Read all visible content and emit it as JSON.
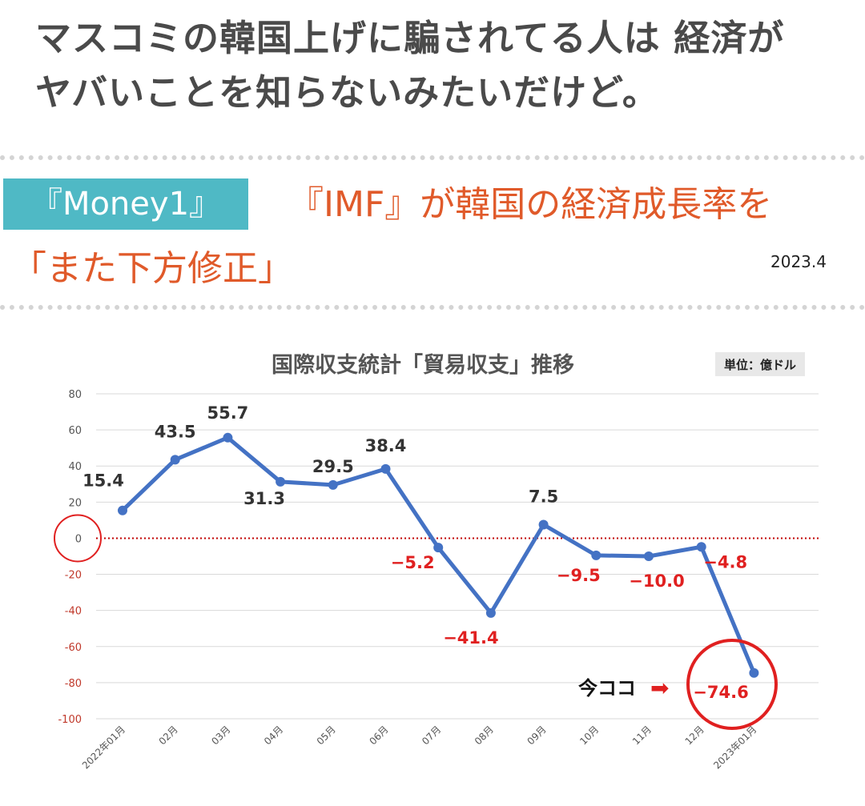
{
  "headline": {
    "line1": "マスコミの韓国上げに騙されてる人は 経済が",
    "line2": "ヤバいことを知らないみたいだけど。"
  },
  "article": {
    "badge": "『Money1』",
    "title_line1": "『IMF』が韓国の経済成長率を",
    "title_line2": "「また下方修正」",
    "date": "2023.4"
  },
  "colors": {
    "line": "#4472c4",
    "negative_label": "#e02020",
    "positive_label": "#333333",
    "zero_line": "#c00000",
    "highlight_circle": "#e02020",
    "badge": "#4fb9c5",
    "red_title": "#e05a2a"
  },
  "chart_data": {
    "type": "line",
    "title": "国際収支統計「貿易収支」推移",
    "unit": "単位：億ドル",
    "categories": [
      "2022年01月",
      "02月",
      "03月",
      "04月",
      "05月",
      "06月",
      "07月",
      "08月",
      "09月",
      "10月",
      "11月",
      "12月",
      "2023年01月"
    ],
    "series": [
      {
        "values": [
          15.4,
          43.5,
          55.7,
          31.3,
          29.5,
          38.4,
          -5.2,
          -41.4,
          7.5,
          -9.5,
          -10.0,
          -4.8,
          -74.6
        ]
      }
    ],
    "data_labels": [
      "15.4",
      "43.5",
      "55.7",
      "31.3",
      "29.5",
      "38.4",
      "−5.2",
      "−41.4",
      "7.5",
      "−9.5",
      "−10.0",
      "−4.8",
      "−74.6"
    ],
    "ylim": [
      -100,
      80
    ],
    "yticks": [
      80,
      60,
      40,
      20,
      0,
      -20,
      -40,
      -60,
      -80,
      -100
    ],
    "grid": true,
    "zero_line": "dotted",
    "annotation": {
      "text": "今ココ",
      "arrow": "➡",
      "target": "2023年01月"
    }
  }
}
